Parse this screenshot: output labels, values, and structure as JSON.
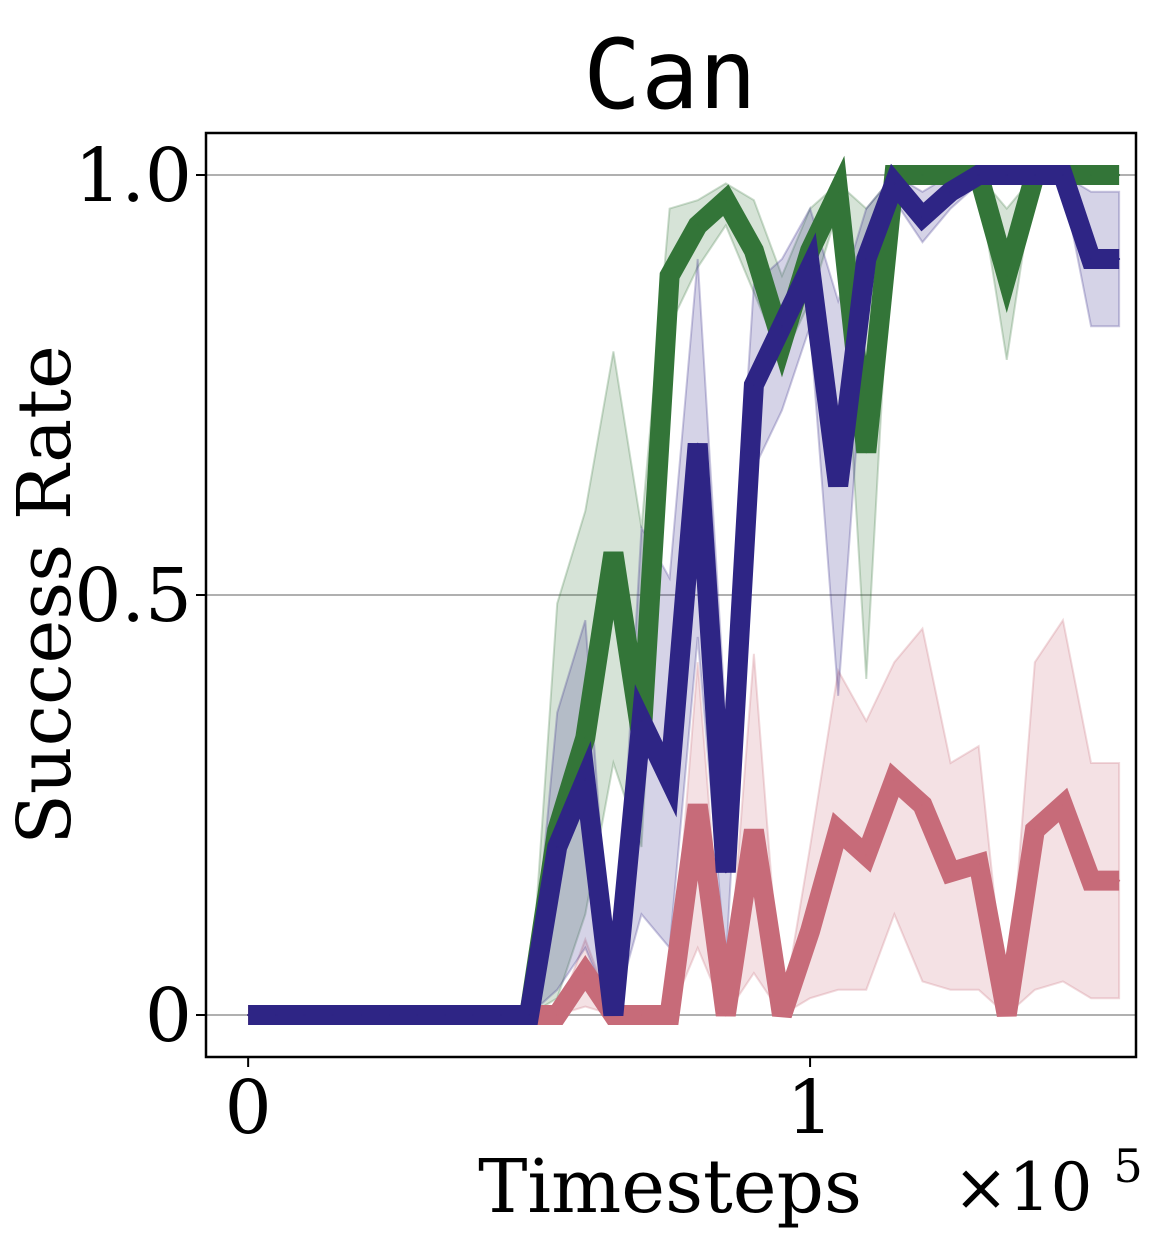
{
  "chart_data": {
    "type": "line",
    "title": "Can",
    "xlabel": "Timesteps",
    "ylabel": "Success Rate",
    "x_scale_label": "×10",
    "x_scale_exponent": "5",
    "xlim": [
      -0.075,
      1.58
    ],
    "ylim": [
      -0.05,
      1.05
    ],
    "xticks": [
      {
        "value": 0,
        "label": "0"
      },
      {
        "value": 1,
        "label": "1"
      }
    ],
    "yticks": [
      {
        "value": 0,
        "label": "0"
      },
      {
        "value": 0.5,
        "label": "0.5"
      },
      {
        "value": 1,
        "label": "1.0"
      }
    ],
    "grid": "horizontal",
    "legend": "none",
    "x": [
      0,
      0.05,
      0.1,
      0.15,
      0.2,
      0.25,
      0.3,
      0.35,
      0.4,
      0.45,
      0.5,
      0.55,
      0.6,
      0.65,
      0.7,
      0.75,
      0.8,
      0.85,
      0.9,
      0.95,
      1.0,
      1.05,
      1.1,
      1.15,
      1.2,
      1.25,
      1.3,
      1.35,
      1.4,
      1.45,
      1.5,
      1.55
    ],
    "series": [
      {
        "color": "#337538",
        "values": [
          0,
          0,
          0,
          0,
          0,
          0,
          0,
          0,
          0,
          0,
          0,
          0.22,
          0.33,
          0.55,
          0.33,
          0.88,
          0.94,
          0.97,
          0.91,
          0.8,
          0.91,
          0.98,
          0.67,
          1.0,
          1.0,
          1.0,
          1.0,
          0.88,
          1.0,
          1.0,
          1.0,
          1.0
        ],
        "lower": [
          0,
          0,
          0,
          0,
          0,
          0,
          0,
          0,
          0,
          0,
          0,
          0.02,
          0.12,
          0.3,
          0.2,
          0.82,
          0.89,
          0.94,
          0.86,
          0.78,
          0.85,
          0.96,
          0.4,
          1.0,
          1.0,
          1.0,
          0.99,
          0.78,
          1.0,
          1.0,
          1.0,
          1.0
        ],
        "upper": [
          0,
          0,
          0,
          0,
          0,
          0,
          0,
          0,
          0,
          0,
          0,
          0.49,
          0.6,
          0.79,
          0.58,
          0.96,
          0.97,
          0.99,
          0.97,
          0.88,
          0.96,
          0.99,
          0.96,
          1.0,
          1.0,
          1.0,
          1.0,
          0.96,
          1.0,
          1.0,
          1.0,
          1.0
        ]
      },
      {
        "color": "#c76b79",
        "values": [
          0,
          0,
          0,
          0,
          0,
          0,
          0,
          0,
          0,
          0,
          0,
          0,
          0.05,
          0,
          0,
          0,
          0.25,
          0,
          0.22,
          0,
          0.1,
          0.22,
          0.19,
          0.28,
          0.25,
          0.17,
          0.18,
          0,
          0.22,
          0.25,
          0.16,
          0.16
        ],
        "lower": [
          0,
          0,
          0,
          0,
          0,
          0,
          0,
          0,
          0,
          0,
          0,
          0,
          0.01,
          0,
          0,
          0,
          0.08,
          0,
          0.05,
          0,
          0.02,
          0.03,
          0.03,
          0.12,
          0.04,
          0.03,
          0.03,
          0,
          0.03,
          0.04,
          0.02,
          0.02
        ],
        "upper": [
          0,
          0,
          0,
          0,
          0,
          0,
          0,
          0,
          0,
          0,
          0,
          0,
          0.09,
          0,
          0,
          0,
          0.42,
          0,
          0.43,
          0,
          0.2,
          0.41,
          0.35,
          0.42,
          0.46,
          0.3,
          0.32,
          0,
          0.42,
          0.47,
          0.3,
          0.3
        ]
      },
      {
        "color": "#2e2585",
        "values": [
          0,
          0,
          0,
          0,
          0,
          0,
          0,
          0,
          0,
          0,
          0,
          0.2,
          0.28,
          0,
          0.35,
          0.28,
          0.68,
          0.17,
          0.75,
          0.82,
          0.89,
          0.63,
          0.9,
          0.99,
          0.95,
          0.98,
          1.0,
          1.0,
          1.0,
          1.0,
          0.9,
          0.9
        ],
        "lower": [
          0,
          0,
          0,
          0,
          0,
          0,
          0,
          0,
          0,
          0,
          0,
          0.03,
          0.08,
          0,
          0.12,
          0.08,
          0.45,
          0.06,
          0.65,
          0.72,
          0.82,
          0.38,
          0.84,
          0.97,
          0.92,
          0.96,
          0.99,
          0.99,
          0.99,
          0.99,
          0.82,
          0.82
        ],
        "upper": [
          0,
          0,
          0,
          0,
          0,
          0,
          0,
          0,
          0,
          0,
          0,
          0.36,
          0.47,
          0,
          0.58,
          0.52,
          0.9,
          0.35,
          0.87,
          0.9,
          0.96,
          0.85,
          0.96,
          1.0,
          0.98,
          1.0,
          1.0,
          1.0,
          1.0,
          1.0,
          0.98,
          0.98
        ]
      }
    ]
  }
}
